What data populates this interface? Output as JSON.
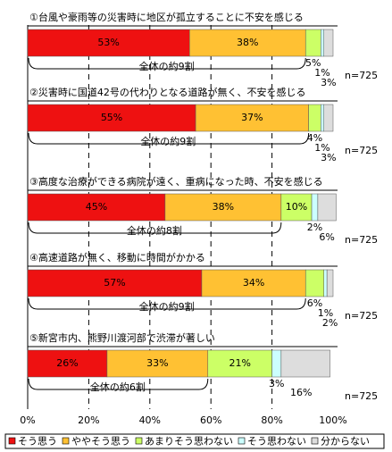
{
  "chart_data": {
    "type": "stacked-bar-horizontal",
    "categories": [
      "①台風や豪雨等の災害時に地区が孤立することに不安を感じる",
      "②災害時に国道42号の代わりとなる道路が無く、不安を感じる",
      "③高度な治療ができる病院が遠く、重病になった時、不安を感じる",
      "④高速道路が無く、移動に時間がかかる",
      "⑤新宮市内、熊野川渡河部で渋滞が著しい"
    ],
    "series": [
      {
        "name": "そう思う",
        "color": "#ee1111",
        "values": [
          53,
          55,
          45,
          57,
          26
        ],
        "value_labels": [
          "53%",
          "55%",
          "45%",
          "57%",
          "26%"
        ]
      },
      {
        "name": "ややそう思う",
        "color": "#ffc133",
        "values": [
          38,
          37,
          38,
          34,
          33
        ],
        "value_labels": [
          "38%",
          "37%",
          "38%",
          "34%",
          "33%"
        ]
      },
      {
        "name": "あまりそう思わない",
        "color": "#ccff66",
        "values": [
          5,
          4,
          10,
          6,
          21
        ],
        "value_labels": [
          "5%",
          "4%",
          "10%",
          "6%",
          "21%"
        ]
      },
      {
        "name": "そう思わない",
        "color": "#ccffff",
        "values": [
          1,
          1,
          2,
          1,
          3
        ],
        "value_labels": [
          "1%",
          "1%",
          "2%",
          "1%",
          "3%"
        ]
      },
      {
        "name": "分からない",
        "color": "#dddddd",
        "values": [
          3,
          3,
          6,
          2,
          16
        ],
        "value_labels": [
          "3%",
          "3%",
          "6%",
          "2%",
          "16%"
        ]
      }
    ],
    "annotations": [
      "全体の約9割",
      "全体の約9割",
      "全体の約8割",
      "全体の約9割",
      "全体の約6割"
    ],
    "sample_sizes": [
      "n=725",
      "n=725",
      "n=725",
      "n=725",
      "n=725"
    ],
    "xlim": [
      0,
      100
    ],
    "xticks": [
      {
        "value": 0,
        "label": "0%"
      },
      {
        "value": 20,
        "label": "20%"
      },
      {
        "value": 40,
        "label": "40%"
      },
      {
        "value": 60,
        "label": "60%"
      },
      {
        "value": 80,
        "label": "80%"
      },
      {
        "value": 100,
        "label": "100%"
      }
    ],
    "grid": true
  }
}
